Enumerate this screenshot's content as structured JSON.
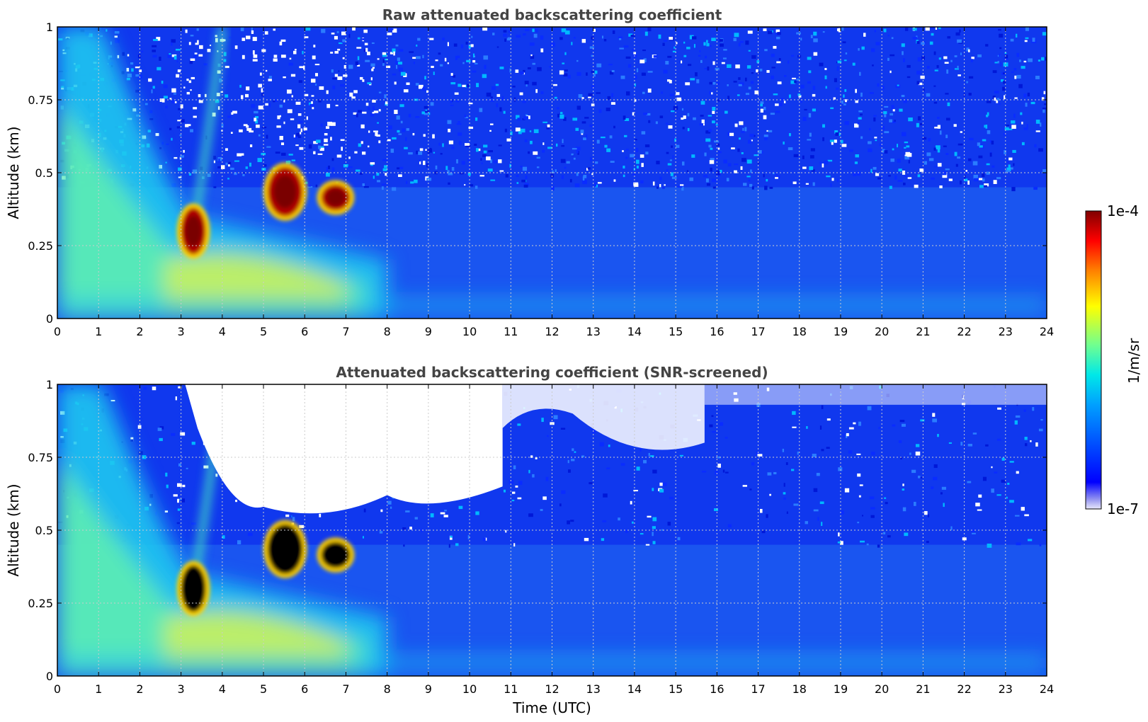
{
  "chart_data": [
    {
      "type": "heatmap",
      "title": "Raw attenuated backscattering coefficient",
      "xlabel": "",
      "ylabel": "Altitude (km)",
      "xlim": [
        0,
        24
      ],
      "ylim": [
        0,
        1
      ],
      "x_ticks": [
        "0",
        "1",
        "2",
        "3",
        "4",
        "5",
        "6",
        "7",
        "8",
        "9",
        "10",
        "11",
        "12",
        "13",
        "14",
        "15",
        "16",
        "17",
        "18",
        "19",
        "20",
        "21",
        "22",
        "23",
        "24"
      ],
      "y_ticks": [
        "0",
        "0.25",
        "0.5",
        "0.75",
        "1"
      ],
      "grid": true,
      "screened": false,
      "features": [
        {
          "kind": "aerosol-layer",
          "time_range": [
            0,
            8
          ],
          "altitude_range": [
            0,
            0.4
          ],
          "level": "medium"
        },
        {
          "kind": "cloud",
          "time_range": [
            3.0,
            3.6
          ],
          "altitude_range": [
            0.22,
            0.38
          ],
          "level": "high"
        },
        {
          "kind": "cloud",
          "time_range": [
            5.1,
            5.95
          ],
          "altitude_range": [
            0.35,
            0.52
          ],
          "level": "high"
        },
        {
          "kind": "cloud",
          "time_range": [
            6.4,
            7.1
          ],
          "altitude_range": [
            0.37,
            0.46
          ],
          "level": "high"
        }
      ]
    },
    {
      "type": "heatmap",
      "title": "Attenuated backscattering coefficient (SNR-screened)",
      "xlabel": "Time (UTC)",
      "ylabel": "Altitude (km)",
      "xlim": [
        0,
        24
      ],
      "ylim": [
        0,
        1
      ],
      "x_ticks": [
        "0",
        "1",
        "2",
        "3",
        "4",
        "5",
        "6",
        "7",
        "8",
        "9",
        "10",
        "11",
        "12",
        "13",
        "14",
        "15",
        "16",
        "17",
        "18",
        "19",
        "20",
        "21",
        "22",
        "23",
        "24"
      ],
      "y_ticks": [
        "0",
        "0.25",
        "0.5",
        "0.75",
        "1"
      ],
      "grid": true,
      "screened": true,
      "features": [
        {
          "kind": "aerosol-layer",
          "time_range": [
            0,
            8
          ],
          "altitude_range": [
            0,
            0.4
          ],
          "level": "medium"
        },
        {
          "kind": "saturated-cloud",
          "time_range": [
            3.0,
            3.6
          ],
          "altitude_range": [
            0.22,
            0.38
          ],
          "level": "saturated"
        },
        {
          "kind": "saturated-cloud",
          "time_range": [
            5.1,
            5.95
          ],
          "altitude_range": [
            0.35,
            0.52
          ],
          "level": "saturated"
        },
        {
          "kind": "saturated-cloud",
          "time_range": [
            6.4,
            7.1
          ],
          "altitude_range": [
            0.37,
            0.46
          ],
          "level": "saturated"
        },
        {
          "kind": "screened-out",
          "time_range": [
            3.1,
            10.8
          ],
          "altitude_range": [
            0.5,
            1.0
          ]
        }
      ]
    }
  ],
  "colorbar": {
    "label": "1/m/sr",
    "min_label": "1e-7",
    "max_label": "1e-4",
    "scale": "log",
    "range": [
      1e-07,
      0.0001
    ],
    "colormap": "jet",
    "placement": "right"
  },
  "colors": {
    "title": "#444444",
    "grid": "#cccccc",
    "screened_background": "#ffffff",
    "saturated": "#000000"
  }
}
